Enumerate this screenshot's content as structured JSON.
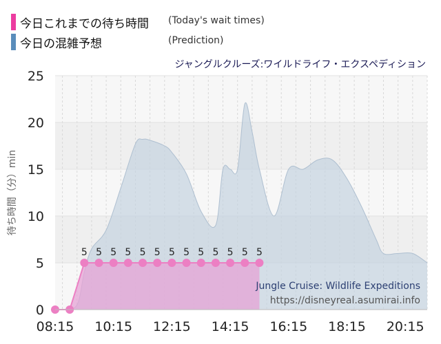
{
  "legend": [
    {
      "label_jp": "今日これまでの待ち時間",
      "label_en": "(Today's wait times)",
      "color": "#ec3ca0"
    },
    {
      "label_jp": "今日の混雑予想",
      "label_en": "(Prediction)",
      "color": "#5a8dbb"
    }
  ],
  "chart_data": {
    "type": "area",
    "title": "ジャングルクルーズ:ワイルドライフ・エクスペディション",
    "ylabel": "待ち時間（分）min",
    "ylim": [
      0,
      25
    ],
    "yticks": [
      "0",
      "5",
      "10",
      "15",
      "20",
      "25"
    ],
    "xticks": [
      "08:15",
      "10:15",
      "12:15",
      "14:15",
      "16:15",
      "18:15",
      "20:15"
    ],
    "x_range": [
      "08:15",
      "21:00"
    ],
    "grid": true,
    "watermark": [
      "Jungle Cruise: Wildlife Expeditions",
      "https://disneyreal.asumirai.info"
    ],
    "series": [
      {
        "name": "今日の混雑予想",
        "color": "#c5d3e0",
        "points": [
          [
            "08:15",
            0
          ],
          [
            "08:30",
            0
          ],
          [
            "09:00",
            0.5
          ],
          [
            "09:15",
            4
          ],
          [
            "09:30",
            6.5
          ],
          [
            "10:00",
            8.5
          ],
          [
            "10:30",
            13
          ],
          [
            "11:00",
            17.7
          ],
          [
            "11:15",
            18.2
          ],
          [
            "11:30",
            18.1
          ],
          [
            "12:00",
            17.5
          ],
          [
            "12:15",
            16.8
          ],
          [
            "12:45",
            14.5
          ],
          [
            "13:15",
            10.5
          ],
          [
            "13:45",
            9
          ],
          [
            "14:00",
            15
          ],
          [
            "14:15",
            15
          ],
          [
            "14:30",
            15
          ],
          [
            "14:45",
            22
          ],
          [
            "15:00",
            19
          ],
          [
            "15:15",
            15
          ],
          [
            "15:45",
            10
          ],
          [
            "16:15",
            15
          ],
          [
            "16:45",
            15
          ],
          [
            "17:15",
            16
          ],
          [
            "17:45",
            16
          ],
          [
            "18:15",
            14
          ],
          [
            "18:45",
            11
          ],
          [
            "19:15",
            7.5
          ],
          [
            "19:30",
            6
          ],
          [
            "20:00",
            6
          ],
          [
            "20:30",
            6
          ],
          [
            "21:00",
            5
          ]
        ]
      },
      {
        "name": "今日これまでの待ち時間",
        "color": "#ec7fc3",
        "points": [
          [
            "08:15",
            0
          ],
          [
            "08:45",
            0
          ],
          [
            "09:15",
            5
          ],
          [
            "09:45",
            5
          ],
          [
            "10:15",
            5
          ],
          [
            "10:45",
            5
          ],
          [
            "11:15",
            5
          ],
          [
            "11:45",
            5
          ],
          [
            "12:15",
            5
          ],
          [
            "12:45",
            5
          ],
          [
            "13:15",
            5
          ],
          [
            "13:45",
            5
          ],
          [
            "14:15",
            5
          ],
          [
            "14:45",
            5
          ],
          [
            "15:15",
            5
          ]
        ],
        "labels": [
          "",
          "",
          "5",
          "5",
          "5",
          "5",
          "5",
          "5",
          "5",
          "5",
          "5",
          "5",
          "5",
          "5",
          "5"
        ]
      }
    ]
  }
}
